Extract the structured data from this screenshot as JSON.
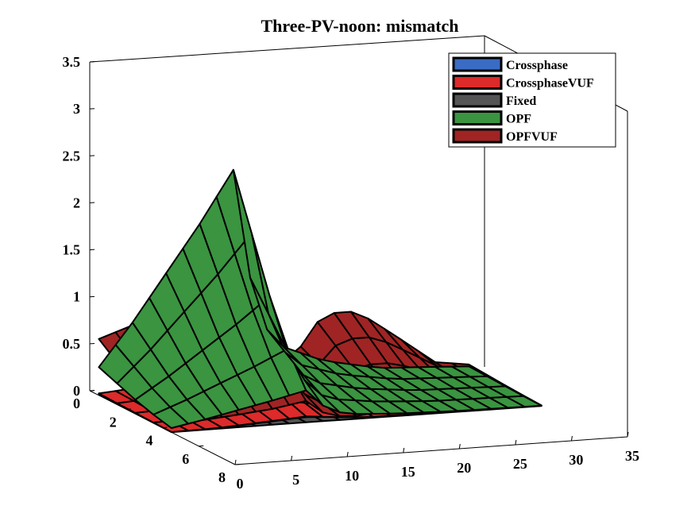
{
  "chart_data": {
    "type": "surface",
    "title": "Three-PV-noon: mismatch",
    "xlabel": "",
    "ylabel": "",
    "zlabel": "",
    "xlim": [
      0,
      35
    ],
    "ylim": [
      0,
      8
    ],
    "zlim": [
      0,
      3.5
    ],
    "x_ticks": [
      "0",
      "5",
      "10",
      "15",
      "20",
      "25",
      "30",
      "35"
    ],
    "y_ticks": [
      "0",
      "2",
      "4",
      "6",
      "8"
    ],
    "z_ticks": [
      "0",
      "0.5",
      "1",
      "1.5",
      "2",
      "2.5",
      "3",
      "3.5"
    ],
    "legend_position": "top-right",
    "grid": false,
    "series": [
      {
        "name": "Crossphase",
        "color": "#3a6cc4",
        "peak": 0.4,
        "ridge": [
          [
            0,
            0.02
          ],
          [
            4,
            0.05
          ],
          [
            7,
            0.18
          ],
          [
            10,
            0.32
          ],
          [
            12,
            0.4
          ],
          [
            14,
            0.3
          ],
          [
            17,
            0.12
          ],
          [
            20,
            0.08
          ],
          [
            23,
            0.05
          ],
          [
            27,
            0.06
          ],
          [
            30,
            0.04
          ],
          [
            33,
            0.02
          ]
        ]
      },
      {
        "name": "CrossphaseVUF",
        "color": "#dd2a2a",
        "peak": 0.45,
        "ridge": [
          [
            0,
            0.02
          ],
          [
            4,
            0.06
          ],
          [
            7,
            0.2
          ],
          [
            10,
            0.35
          ],
          [
            12,
            0.45
          ],
          [
            14,
            0.3
          ],
          [
            17,
            0.1
          ],
          [
            20,
            0.08
          ],
          [
            23,
            0.05
          ],
          [
            27,
            0.06
          ],
          [
            30,
            0.04
          ],
          [
            33,
            0.02
          ]
        ]
      },
      {
        "name": "Fixed",
        "color": "#555555",
        "peak": 0.05,
        "ridge": [
          [
            0,
            0.01
          ],
          [
            10,
            0.03
          ],
          [
            20,
            0.02
          ],
          [
            33,
            0.01
          ]
        ]
      },
      {
        "name": "OPF",
        "color": "#3a9440",
        "peak": 2.3,
        "ridge": [
          [
            0,
            0.3
          ],
          [
            3,
            0.75
          ],
          [
            6,
            1.25
          ],
          [
            9,
            1.75
          ],
          [
            12,
            2.3
          ],
          [
            14,
            0.75
          ],
          [
            16,
            0.4
          ],
          [
            20,
            0.2
          ],
          [
            25,
            0.08
          ],
          [
            30,
            0.05
          ],
          [
            33,
            0.03
          ]
        ]
      },
      {
        "name": "OPFVUF",
        "color": "#a02424",
        "peak": 1.55,
        "ridge": [
          [
            0,
            0.6
          ],
          [
            3,
            0.72
          ],
          [
            6,
            0.92
          ],
          [
            9,
            1.15
          ],
          [
            12,
            1.55
          ],
          [
            14,
            0.35
          ],
          [
            17,
            0.2
          ],
          [
            20,
            0.7
          ],
          [
            23,
            0.7
          ],
          [
            26,
            0.45
          ],
          [
            30,
            0.1
          ],
          [
            33,
            0.05
          ]
        ]
      }
    ]
  }
}
